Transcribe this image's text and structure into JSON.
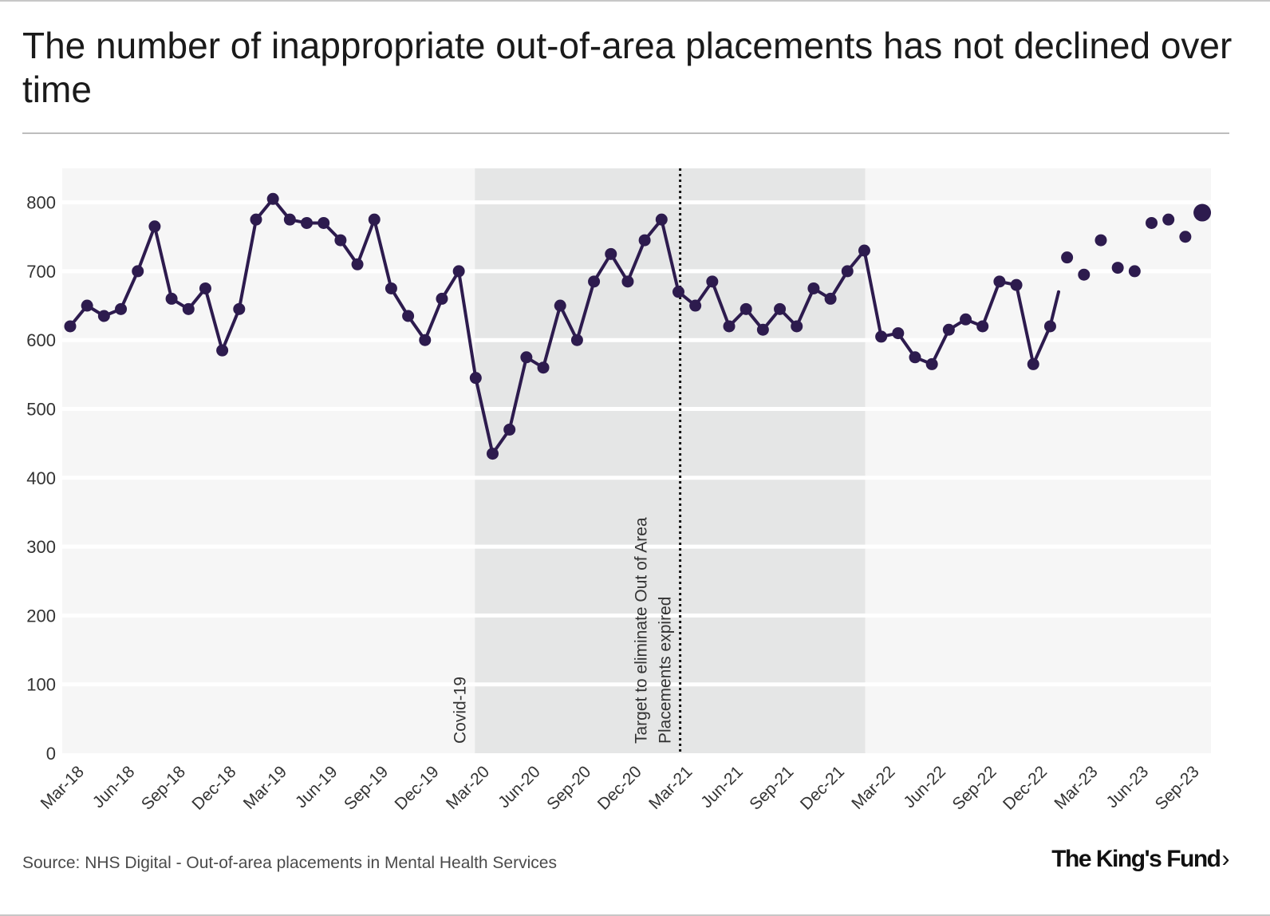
{
  "title": "The number of inappropriate out-of-area placements has not declined over time",
  "source": "Source: NHS Digital - Out-of-area placements in Mental Health Services",
  "logo_text": "The King's Fund",
  "colors": {
    "series": "#2d1b4e",
    "plot_bg": "#f6f6f6",
    "gridline": "#ffffff",
    "shaded": "#e5e6e6",
    "text": "#222222"
  },
  "chart_data": {
    "type": "line",
    "title": "The number of inappropriate out-of-area placements has not declined over time",
    "xlabel": "",
    "ylabel": "",
    "ylim": [
      0,
      850
    ],
    "yticks": [
      0,
      100,
      200,
      300,
      400,
      500,
      600,
      700,
      800
    ],
    "xtick_labels": [
      "Mar-18",
      "Jun-18",
      "Sep-18",
      "Dec-18",
      "Mar-19",
      "Jun-19",
      "Sep-19",
      "Dec-19",
      "Mar-20",
      "Jun-20",
      "Sep-20",
      "Dec-20",
      "Mar-21",
      "Jun-21",
      "Sep-21",
      "Dec-21",
      "Mar-22",
      "Jun-22",
      "Sep-22",
      "Dec-22",
      "Mar-23",
      "Jun-23",
      "Sep-23"
    ],
    "xtick_every": 3,
    "series": [
      {
        "name": "Inappropriate out-of-area placements",
        "values": [
          620,
          650,
          635,
          645,
          700,
          765,
          660,
          645,
          675,
          585,
          645,
          775,
          805,
          775,
          770,
          770,
          745,
          710,
          775,
          675,
          635,
          600,
          660,
          700,
          545,
          435,
          470,
          575,
          560,
          650,
          600,
          685,
          725,
          685,
          745,
          775,
          670,
          650,
          685,
          620,
          645,
          615,
          645,
          620,
          675,
          660,
          700,
          730,
          605,
          610,
          575,
          565,
          615,
          630,
          620,
          685,
          680,
          565,
          620,
          720,
          695,
          745,
          705,
          700,
          770,
          775,
          750,
          785
        ],
        "line_through_index": 58,
        "highlight_last": true
      }
    ],
    "shaded_ranges": [
      {
        "start_index": 24,
        "end_index": 47
      }
    ],
    "annotations": [
      {
        "index": 24,
        "text": "Covid-19",
        "line": false
      },
      {
        "index": 36.1,
        "text": "Target to eliminate Out of Area Placements expired",
        "line_text_1": "Target to eliminate Out of Area",
        "line_text_2": "Placements expired",
        "line": true
      }
    ],
    "grid": true
  }
}
